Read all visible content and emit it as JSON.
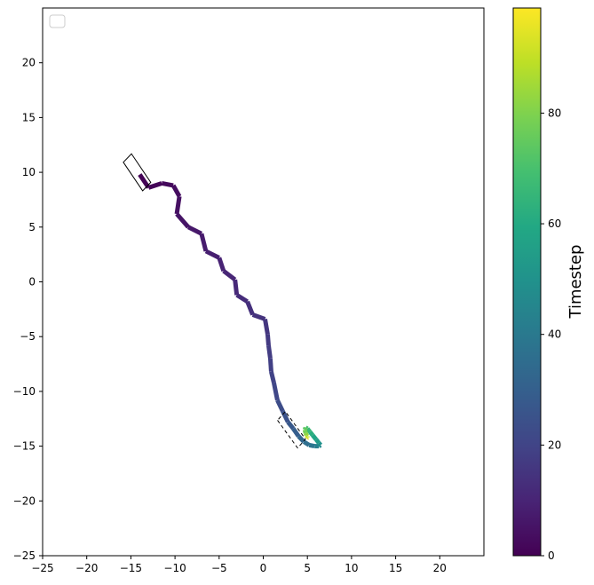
{
  "chart_data": {
    "type": "line",
    "title": "",
    "xlabel": "",
    "ylabel": "",
    "xlim": [
      -25,
      25
    ],
    "ylim": [
      -25,
      25
    ],
    "x_ticks": [
      -25,
      -20,
      -15,
      -10,
      -5,
      0,
      5,
      10,
      15,
      20
    ],
    "y_ticks": [
      -25,
      -20,
      -15,
      -10,
      -5,
      0,
      5,
      10,
      15,
      20
    ],
    "grid": false,
    "legend": {
      "placement": "upper-left",
      "entries": []
    },
    "colormap": "viridis",
    "colorbar": {
      "label": "Timestep",
      "min": 0,
      "max": 99,
      "ticks": [
        0,
        20,
        40,
        60,
        80
      ]
    },
    "series": [
      {
        "color_by": "timestep",
        "points": [
          {
            "t": 0,
            "x": -14.0,
            "y": 9.8
          },
          {
            "t": 1,
            "x": -13.0,
            "y": 8.6
          },
          {
            "t": 2,
            "x": -11.5,
            "y": 9.0
          },
          {
            "t": 3,
            "x": -10.2,
            "y": 8.8
          },
          {
            "t": 4,
            "x": -9.5,
            "y": 7.8
          },
          {
            "t": 5,
            "x": -9.8,
            "y": 6.2
          },
          {
            "t": 6,
            "x": -8.5,
            "y": 5.0
          },
          {
            "t": 7,
            "x": -7.0,
            "y": 4.4
          },
          {
            "t": 8,
            "x": -6.5,
            "y": 2.8
          },
          {
            "t": 9,
            "x": -5.0,
            "y": 2.2
          },
          {
            "t": 10,
            "x": -4.5,
            "y": 1.0
          },
          {
            "t": 11,
            "x": -3.2,
            "y": 0.2
          },
          {
            "t": 12,
            "x": -3.0,
            "y": -1.2
          },
          {
            "t": 13,
            "x": -1.8,
            "y": -1.8
          },
          {
            "t": 14,
            "x": -1.2,
            "y": -3.0
          },
          {
            "t": 15,
            "x": 0.2,
            "y": -3.4
          },
          {
            "t": 16,
            "x": 0.5,
            "y": -4.8
          },
          {
            "t": 17,
            "x": 0.6,
            "y": -5.8
          },
          {
            "t": 18,
            "x": 0.8,
            "y": -7.0
          },
          {
            "t": 19,
            "x": 0.9,
            "y": -8.2
          },
          {
            "t": 20,
            "x": 1.2,
            "y": -9.2
          },
          {
            "t": 22,
            "x": 1.6,
            "y": -10.8
          },
          {
            "t": 24,
            "x": 2.2,
            "y": -11.8
          },
          {
            "t": 26,
            "x": 2.8,
            "y": -12.8
          },
          {
            "t": 28,
            "x": 3.4,
            "y": -13.4
          },
          {
            "t": 31,
            "x": 4.0,
            "y": -14.1
          },
          {
            "t": 34,
            "x": 4.6,
            "y": -14.6
          },
          {
            "t": 37,
            "x": 5.2,
            "y": -14.9
          },
          {
            "t": 40,
            "x": 5.8,
            "y": -15.0
          },
          {
            "t": 44,
            "x": 6.3,
            "y": -15.0
          },
          {
            "t": 48,
            "x": 6.5,
            "y": -14.9
          },
          {
            "t": 52,
            "x": 6.3,
            "y": -14.7
          },
          {
            "t": 56,
            "x": 6.0,
            "y": -14.4
          },
          {
            "t": 60,
            "x": 5.6,
            "y": -14.0
          },
          {
            "t": 64,
            "x": 5.3,
            "y": -13.7
          },
          {
            "t": 68,
            "x": 5.0,
            "y": -13.4
          },
          {
            "t": 72,
            "x": 4.8,
            "y": -13.3
          },
          {
            "t": 76,
            "x": 4.7,
            "y": -13.5
          },
          {
            "t": 80,
            "x": 4.8,
            "y": -13.8
          },
          {
            "t": 84,
            "x": 4.9,
            "y": -14.0
          },
          {
            "t": 88,
            "x": 5.0,
            "y": -14.1
          },
          {
            "t": 92,
            "x": 5.0,
            "y": -14.2
          },
          {
            "t": 96,
            "x": 4.9,
            "y": -14.3
          },
          {
            "t": 99,
            "x": 4.9,
            "y": -14.3
          }
        ]
      }
    ],
    "annotations": [
      {
        "type": "rectangle-outline",
        "style": "solid",
        "center": [
          -14.3,
          10.0
        ],
        "length": 3.4,
        "width": 1.2,
        "angle_deg": -50
      },
      {
        "type": "rectangle-outline",
        "style": "dashed",
        "center": [
          3.2,
          -13.5
        ],
        "length": 3.4,
        "width": 1.2,
        "angle_deg": -48
      }
    ]
  }
}
